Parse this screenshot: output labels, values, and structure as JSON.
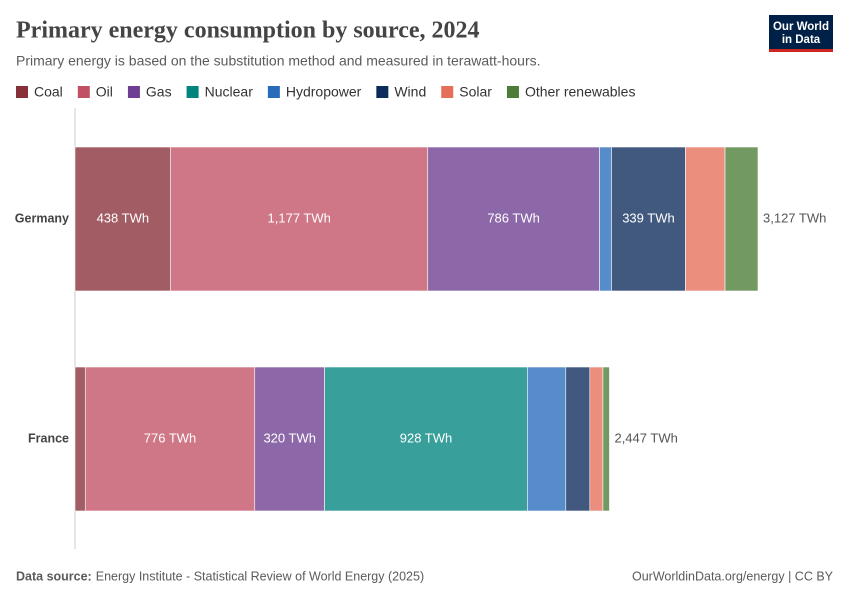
{
  "header": {
    "title": "Primary energy consumption by source, 2024",
    "subtitle": "Primary energy is based on the substitution method and measured in terawatt-hours.",
    "logo": [
      "Our World",
      "in Data"
    ]
  },
  "chart_data": {
    "type": "stacked-bar-horizontal",
    "categories": [
      "Germany",
      "France"
    ],
    "series": [
      {
        "name": "Coal",
        "color": "#883039",
        "values": [
          438,
          47
        ],
        "value_labels": [
          "438 TWh",
          null
        ]
      },
      {
        "name": "Oil",
        "color": "#c15065",
        "values": [
          1177,
          776
        ],
        "value_labels": [
          "1,177 TWh",
          "776 TWh"
        ]
      },
      {
        "name": "Gas",
        "color": "#6d3e91",
        "values": [
          786,
          320
        ],
        "value_labels": [
          "786 TWh",
          "320 TWh"
        ]
      },
      {
        "name": "Nuclear",
        "color": "#00847e",
        "values": [
          0,
          928
        ],
        "value_labels": [
          null,
          "928 TWh"
        ]
      },
      {
        "name": "Hydropower",
        "color": "#286bbb",
        "values": [
          55,
          176
        ],
        "value_labels": [
          null,
          null
        ]
      },
      {
        "name": "Wind",
        "color": "#0c2a5b",
        "values": [
          339,
          110
        ],
        "value_labels": [
          "339 TWh",
          null
        ]
      },
      {
        "name": "Solar",
        "color": "#e56e5a",
        "values": [
          181,
          60
        ],
        "value_labels": [
          null,
          null
        ]
      },
      {
        "name": "Other renewables",
        "color": "#4c7c37",
        "values": [
          151,
          30
        ],
        "value_labels": [
          null,
          null
        ]
      }
    ],
    "totals": [
      3127,
      2447
    ],
    "total_labels": [
      "3,127 TWh",
      "2,447 TWh"
    ]
  },
  "footer": {
    "source_label": "Data source:",
    "source": "Energy Institute - Statistical Review of World Energy (2025)",
    "credit": "OurWorldinData.org/energy | CC BY"
  }
}
